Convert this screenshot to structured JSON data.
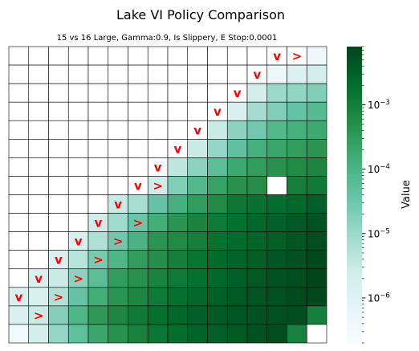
{
  "chart_data": {
    "type": "heatmap",
    "title": "Lake VI Policy Comparison",
    "subtitle": "15 vs 16 Large, Gamma:0.9, Is Slippery, E Stop:0.0001",
    "colorbar_label": "Value",
    "colorbar_scale": "log",
    "colorbar_range": [
      2e-07,
      0.008
    ],
    "colorbar_ticks": [
      {
        "value": 0.001,
        "base": "10",
        "exp": "−3"
      },
      {
        "value": 0.0001,
        "base": "10",
        "exp": "−4"
      },
      {
        "value": 1e-05,
        "base": "10",
        "exp": "−5"
      },
      {
        "value": 1e-06,
        "base": "10",
        "exp": "−6"
      }
    ],
    "colormap": [
      "#f7fcfd",
      "#e5f5f9",
      "#ccece6",
      "#99d8c9",
      "#66c2a4",
      "#41ae76",
      "#238b45",
      "#006d2c",
      "#00441b"
    ],
    "rows": 16,
    "cols": 16,
    "note_nan": "cells with value null are drawn white (no value)",
    "values": [
      [
        null,
        null,
        null,
        null,
        null,
        null,
        null,
        null,
        null,
        null,
        null,
        null,
        null,
        null,
        null,
        4e-07
      ],
      [
        null,
        null,
        null,
        null,
        null,
        null,
        null,
        null,
        null,
        null,
        null,
        null,
        null,
        4e-07,
        1.2e-06,
        2e-06
      ],
      [
        null,
        null,
        null,
        null,
        null,
        null,
        null,
        null,
        null,
        null,
        null,
        null,
        2e-06,
        1e-05,
        1.3e-05,
        2e-05
      ],
      [
        null,
        null,
        null,
        null,
        null,
        null,
        null,
        null,
        null,
        null,
        null,
        1.5e-06,
        8e-06,
        2e-05,
        4e-05,
        7e-05
      ],
      [
        null,
        null,
        null,
        null,
        null,
        null,
        null,
        null,
        null,
        null,
        3e-06,
        1.5e-05,
        3e-05,
        8e-05,
        0.00013,
        0.00018
      ],
      [
        null,
        null,
        null,
        null,
        null,
        null,
        null,
        null,
        null,
        3e-06,
        1.2e-05,
        5e-05,
        0.00013,
        0.0002,
        0.0003,
        0.0004
      ],
      [
        null,
        null,
        null,
        null,
        null,
        null,
        null,
        null,
        4e-06,
        1.5e-05,
        6e-05,
        0.00018,
        0.0003,
        0.00045,
        0.0006,
        0.00075
      ],
      [
        null,
        null,
        null,
        null,
        null,
        null,
        null,
        2.5e-06,
        2e-05,
        8e-05,
        0.00025,
        0.00045,
        0.0005,
        null,
        0.001,
        0.0012
      ],
      [
        null,
        null,
        null,
        null,
        null,
        3e-06,
        7e-06,
        4e-05,
        0.00012,
        0.0003,
        0.0006,
        0.0013,
        0.0016,
        0.002,
        0.0025,
        0.0035
      ],
      [
        null,
        null,
        null,
        null,
        2.5e-06,
        9e-06,
        3.5e-05,
        0.00014,
        0.0004,
        0.0008,
        0.0012,
        0.0018,
        0.0025,
        0.003,
        0.004,
        0.005
      ],
      [
        null,
        null,
        null,
        1.5e-06,
        6e-06,
        3e-05,
        0.00011,
        0.0004,
        0.0006,
        0.001,
        0.0017,
        0.0022,
        0.0027,
        0.0035,
        0.0045,
        0.006
      ],
      [
        null,
        null,
        1.5e-06,
        5e-06,
        2.5e-05,
        9e-05,
        0.0003,
        0.0005,
        0.001,
        0.0015,
        0.0022,
        0.0028,
        0.0035,
        0.0045,
        0.0055,
        0.007
      ],
      [
        null,
        1.5e-06,
        3e-06,
        1.5e-05,
        6e-05,
        0.0003,
        0.00045,
        0.0008,
        0.0012,
        0.0018,
        0.0025,
        0.0033,
        0.004,
        0.005,
        0.006,
        0.0075
      ],
      [
        1.5e-06,
        1.5e-06,
        6e-06,
        4e-05,
        0.00015,
        0.0004,
        0.0007,
        0.0012,
        0.0018,
        0.0025,
        0.0032,
        0.004,
        0.0048,
        0.0055,
        0.0065,
        0.007
      ],
      [
        1.5e-06,
        3e-06,
        1.8e-05,
        9e-05,
        0.00035,
        0.0007,
        0.0012,
        0.0018,
        0.0025,
        0.0032,
        0.0038,
        0.0045,
        0.005,
        0.0055,
        0.006,
        0.001
      ],
      [
        3e-07,
        2e-06,
        1.2e-05,
        5e-05,
        0.0002,
        0.00045,
        0.0009,
        0.0014,
        0.002,
        0.0028,
        0.0035,
        0.0042,
        0.005,
        0.0058,
        0.0009,
        null
      ]
    ],
    "arrows": [
      {
        "row": 0,
        "col": 13,
        "symbol": "v"
      },
      {
        "row": 0,
        "col": 14,
        "symbol": ">"
      },
      {
        "row": 1,
        "col": 12,
        "symbol": "v"
      },
      {
        "row": 2,
        "col": 11,
        "symbol": "v"
      },
      {
        "row": 3,
        "col": 10,
        "symbol": "v"
      },
      {
        "row": 4,
        "col": 9,
        "symbol": "v"
      },
      {
        "row": 5,
        "col": 8,
        "symbol": "v"
      },
      {
        "row": 6,
        "col": 7,
        "symbol": "v"
      },
      {
        "row": 7,
        "col": 6,
        "symbol": "v"
      },
      {
        "row": 7,
        "col": 7,
        "symbol": ">"
      },
      {
        "row": 8,
        "col": 5,
        "symbol": "v"
      },
      {
        "row": 9,
        "col": 4,
        "symbol": "v"
      },
      {
        "row": 9,
        "col": 6,
        "symbol": ">"
      },
      {
        "row": 10,
        "col": 3,
        "symbol": "v"
      },
      {
        "row": 10,
        "col": 5,
        "symbol": ">"
      },
      {
        "row": 11,
        "col": 2,
        "symbol": "v"
      },
      {
        "row": 11,
        "col": 4,
        "symbol": ">"
      },
      {
        "row": 12,
        "col": 1,
        "symbol": "v"
      },
      {
        "row": 12,
        "col": 3,
        "symbol": ">"
      },
      {
        "row": 13,
        "col": 0,
        "symbol": "v"
      },
      {
        "row": 13,
        "col": 2,
        "symbol": ">"
      },
      {
        "row": 14,
        "col": 1,
        "symbol": ">"
      }
    ]
  }
}
